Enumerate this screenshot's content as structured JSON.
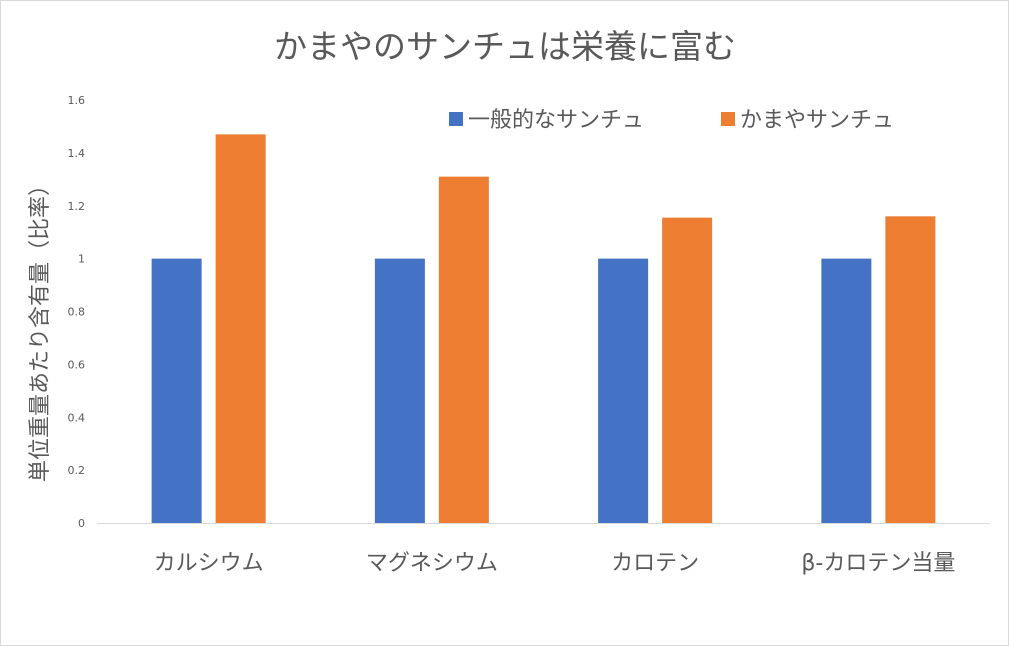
{
  "chart_data": {
    "type": "bar",
    "title": "かまやのサンチュは栄養に富む",
    "xlabel": "",
    "ylabel": "単位重量あたり含有量（比率）",
    "categories": [
      "カルシウム",
      "マグネシウム",
      "カロテン",
      "β-カロテン当量"
    ],
    "series": [
      {
        "name": "一般的なサンチュ",
        "color": "#4472c4",
        "values": [
          1,
          1,
          1,
          1
        ]
      },
      {
        "name": "かまやサンチュ",
        "color": "#ed7d31",
        "values": [
          1.47,
          1.31,
          1.155,
          1.16
        ]
      }
    ],
    "ylim": [
      0,
      1.6
    ],
    "yticks": [
      0,
      0.2,
      0.4,
      0.6,
      0.8,
      1,
      1.2,
      1.4,
      1.6
    ],
    "ytick_labels": [
      "0",
      "0.2",
      "0.4",
      "0.6",
      "0.8",
      "1",
      "1.2",
      "1.4",
      "1.6"
    ],
    "grid": false,
    "legend_position": "top-right"
  }
}
